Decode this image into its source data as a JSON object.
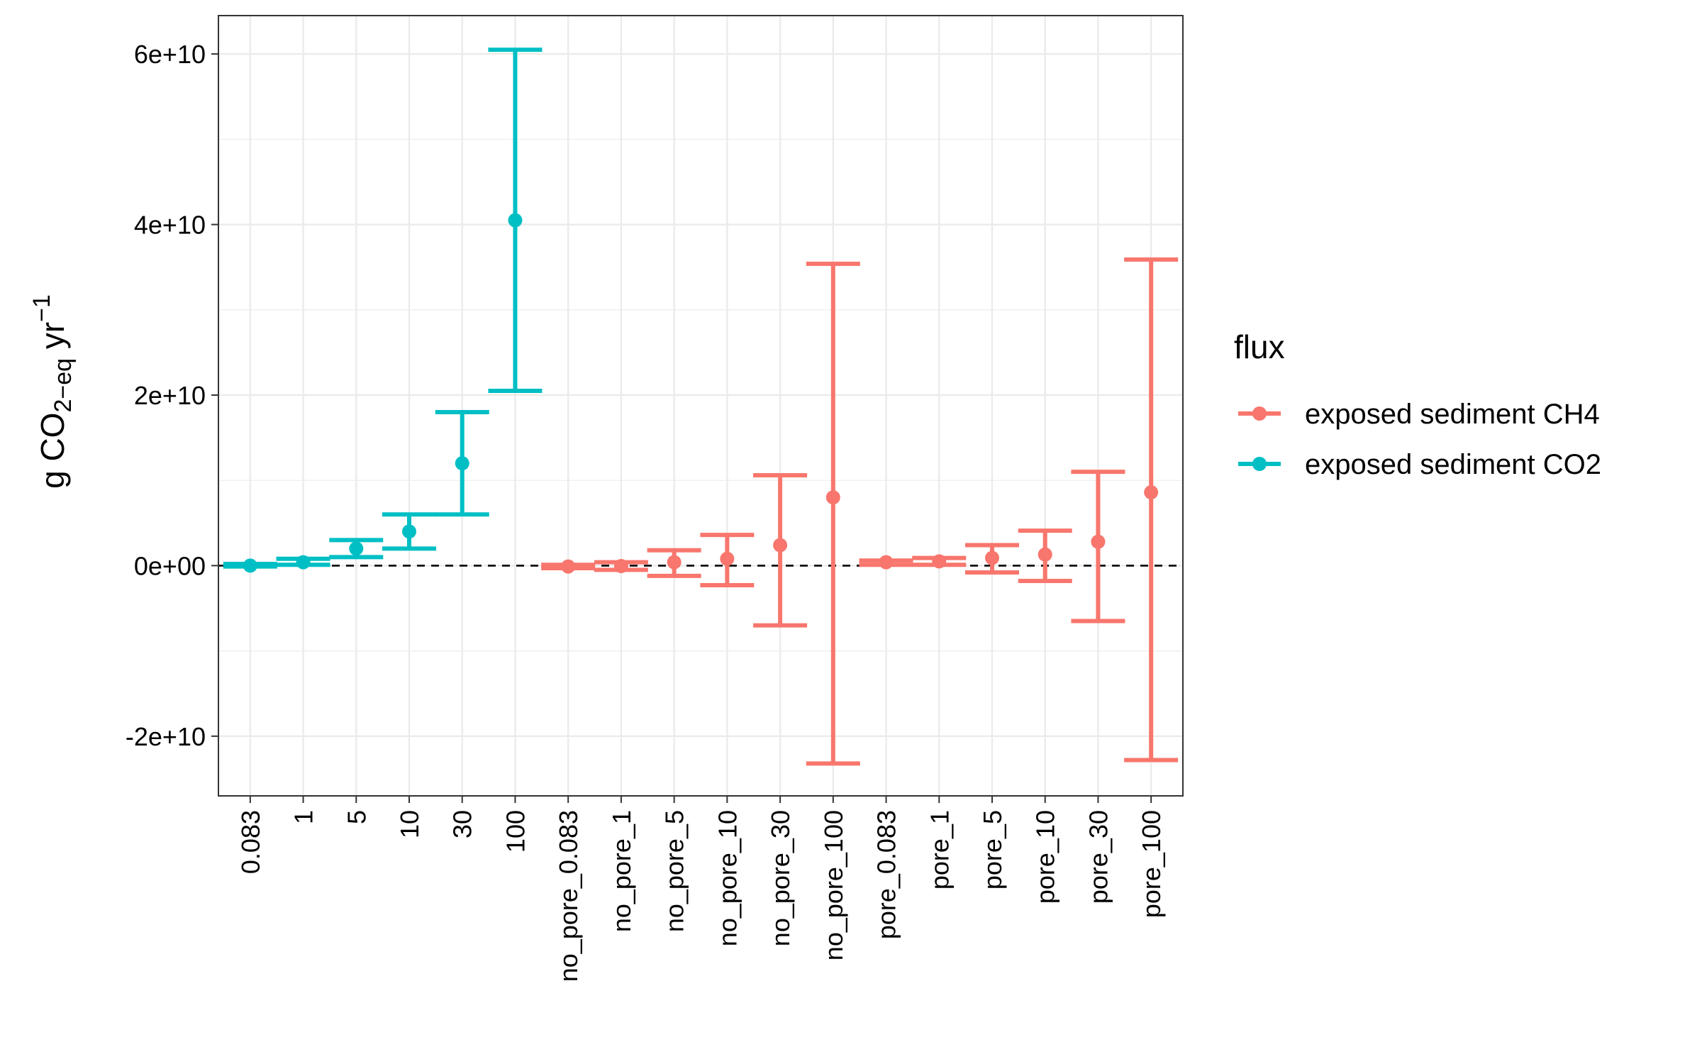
{
  "chart_data": {
    "type": "errorbar",
    "ylabel": {
      "base": "g CO",
      "sub1": "2−eq",
      "mid": " yr",
      "sup": "−1"
    },
    "xlabel": "",
    "ylim": [
      -27000000000,
      64500000000
    ],
    "yticks": [
      {
        "value": -20000000000,
        "label": "-2e+10"
      },
      {
        "value": 0,
        "label": "0e+00"
      },
      {
        "value": 20000000000,
        "label": "2e+10"
      },
      {
        "value": 40000000000,
        "label": "4e+10"
      },
      {
        "value": 60000000000,
        "label": "6e+10"
      }
    ],
    "yminor": [
      -10000000000,
      10000000000,
      30000000000,
      50000000000
    ],
    "categories": [
      "0.083",
      "1",
      "5",
      "10",
      "30",
      "100",
      "no_pore_0.083",
      "no_pore_1",
      "no_pore_5",
      "no_pore_10",
      "no_pore_30",
      "no_pore_100",
      "pore_0.083",
      "pore_1",
      "pore_5",
      "pore_10",
      "pore_30",
      "pore_100"
    ],
    "reference_line": {
      "y": 0,
      "style": "dashed"
    },
    "grid": true,
    "legend": {
      "title": "flux",
      "position": "right"
    },
    "series": [
      {
        "name": "exposed sediment CO2",
        "color": "#00BFC4",
        "points": [
          {
            "x": "0.083",
            "y": 0,
            "ymin": -100000000,
            "ymax": 200000000
          },
          {
            "x": "1",
            "y": 400000000,
            "ymin": 100000000,
            "ymax": 800000000
          },
          {
            "x": "5",
            "y": 2000000000,
            "ymin": 1000000000,
            "ymax": 3000000000
          },
          {
            "x": "10",
            "y": 4000000000,
            "ymin": 2000000000,
            "ymax": 6000000000
          },
          {
            "x": "30",
            "y": 12000000000,
            "ymin": 6000000000,
            "ymax": 18000000000
          },
          {
            "x": "100",
            "y": 40500000000,
            "ymin": 20500000000,
            "ymax": 60500000000
          }
        ]
      },
      {
        "name": "exposed sediment CH4",
        "color": "#F8766D",
        "points": [
          {
            "x": "no_pore_0.083",
            "y": -100000000,
            "ymin": -300000000,
            "ymax": 100000000
          },
          {
            "x": "no_pore_1",
            "y": -50000000,
            "ymin": -500000000,
            "ymax": 400000000
          },
          {
            "x": "no_pore_5",
            "y": 400000000,
            "ymin": -1200000000,
            "ymax": 1800000000
          },
          {
            "x": "no_pore_10",
            "y": 800000000,
            "ymin": -2300000000,
            "ymax": 3600000000
          },
          {
            "x": "no_pore_30",
            "y": 2400000000,
            "ymin": -7000000000,
            "ymax": 10600000000
          },
          {
            "x": "no_pore_100",
            "y": 8000000000,
            "ymin": -23200000000,
            "ymax": 35400000000
          },
          {
            "x": "pore_0.083",
            "y": 400000000,
            "ymin": 100000000,
            "ymax": 600000000
          },
          {
            "x": "pore_1",
            "y": 500000000,
            "ymin": 100000000,
            "ymax": 900000000
          },
          {
            "x": "pore_5",
            "y": 900000000,
            "ymin": -800000000,
            "ymax": 2400000000
          },
          {
            "x": "pore_10",
            "y": 1300000000,
            "ymin": -1800000000,
            "ymax": 4100000000
          },
          {
            "x": "pore_30",
            "y": 2800000000,
            "ymin": -6500000000,
            "ymax": 11000000000
          },
          {
            "x": "pore_100",
            "y": 8600000000,
            "ymin": -22800000000,
            "ymax": 35900000000
          }
        ]
      }
    ]
  }
}
